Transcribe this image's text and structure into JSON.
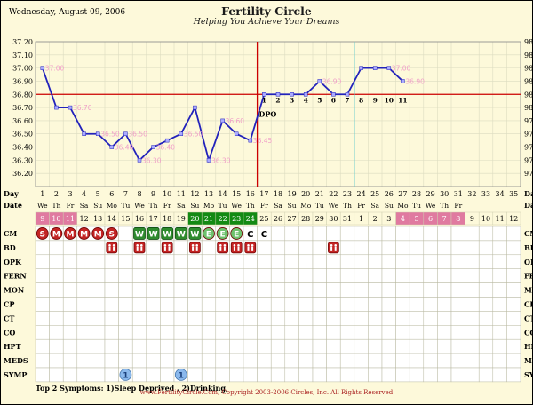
{
  "header": {
    "date": "Wednesday, August 09, 2006",
    "title": "Fertility Circle",
    "subtitle": "Helping You Achieve Your Dreams"
  },
  "footer": {
    "text": "www.FertilityCircle.Com, Copyright 2003-2006 Circles, Inc. All Rights Reserved"
  },
  "symptoms_note": "Top 2 Symptoms: 1)Sleep Deprived , 2)Drinking,",
  "colors": {
    "temp_line": "#2222bb",
    "temp_marker": "#aaaaff",
    "coverline": "#cc0000",
    "ovulation_line": "#cc0000",
    "ovulation_alt_line": "#66cccc",
    "period_cell": "#e07aa0",
    "fertile_cell": "#138a13",
    "stamp_red": "#c42424",
    "stamp_green": "#2e8b2e",
    "symp_badge": "#8ab8ec"
  },
  "chart_data": {
    "type": "line",
    "title": "",
    "ylabel_left": "Temperature (C)",
    "ylabel_right": "Temperature (F)",
    "ylim": [
      36.1,
      37.2
    ],
    "y_ticks_c": [
      "37.20",
      "37.10",
      "37.00",
      "36.90",
      "36.80",
      "36.70",
      "36.60",
      "36.50",
      "36.40",
      "36.30",
      "36.20"
    ],
    "y_ticks_f": [
      "98.96",
      "98.78",
      "98.60",
      "98.42",
      "98.24",
      "98.06",
      "97.88",
      "97.70",
      "97.52",
      "97.34",
      "97.16"
    ],
    "coverline": 36.8,
    "ovulation_day": 16,
    "alt_ovulation_day": 23,
    "days": [
      1,
      2,
      3,
      4,
      5,
      6,
      7,
      8,
      9,
      10,
      11,
      12,
      13,
      14,
      15,
      16,
      17,
      18,
      19,
      20,
      21,
      22,
      23,
      24,
      25,
      26,
      27,
      28,
      29,
      30,
      31,
      32,
      33,
      34,
      35
    ],
    "temps": [
      37.0,
      36.7,
      36.7,
      36.5,
      36.5,
      36.4,
      36.5,
      36.3,
      36.4,
      36.45,
      36.5,
      36.7,
      36.3,
      36.6,
      36.5,
      36.45,
      36.8,
      36.8,
      36.8,
      36.8,
      36.9,
      36.8,
      36.8,
      37.0,
      37.0,
      37.0,
      36.9
    ],
    "temp_labels": [
      "37.00",
      "",
      "36.70",
      "",
      "36.50",
      "36.40",
      "36.50",
      "36.30",
      "36.40",
      "",
      "36.50",
      "",
      "36.30",
      "36.60",
      "",
      "36.45",
      "",
      "",
      "",
      "",
      "36.90",
      "",
      "",
      "",
      "",
      "37.00",
      "36.90"
    ],
    "dpo_label": "DPO",
    "dpo_numbers": [
      "1",
      "2",
      "3",
      "4",
      "5",
      "6",
      "7",
      "8",
      "9",
      "10",
      "11"
    ],
    "dpo_start_day": 17
  },
  "rows": {
    "day_label": "Day",
    "date_label": "Date",
    "weekdays": [
      "We",
      "Th",
      "Fr",
      "Sa",
      "Su",
      "Mo",
      "Tu",
      "We",
      "Th",
      "Fr",
      "Sa",
      "Su",
      "Mo",
      "Tu",
      "We",
      "Th",
      "Fr",
      "Sa",
      "Su",
      "Mo",
      "Tu",
      "We",
      "Th",
      "Fr",
      "Sa",
      "Su",
      "Mo",
      "Tu",
      "We",
      "Th",
      "Fr",
      "Sa",
      "Su",
      "Mo",
      "Tu"
    ],
    "weekdays_shown": 31,
    "dates": [
      "9",
      "10",
      "11",
      "12",
      "13",
      "14",
      "15",
      "16",
      "17",
      "18",
      "19",
      "20",
      "21",
      "22",
      "23",
      "24",
      "25",
      "26",
      "27",
      "28",
      "29",
      "30",
      "31",
      "1",
      "2",
      "3",
      "4",
      "5",
      "6",
      "7",
      "8",
      "9",
      "10",
      "11",
      "12"
    ],
    "period_cells": [
      1,
      2,
      3,
      27,
      28,
      29,
      30,
      31
    ],
    "fertile_cells": [
      12,
      13,
      14,
      15,
      16
    ],
    "labels": [
      "CM",
      "BD",
      "OPK",
      "FERN",
      "MON",
      "CP",
      "CT",
      "CO",
      "HPT",
      "MEDS",
      "SYMP"
    ],
    "cm": [
      {
        "day": 1,
        "letter": "S",
        "color": "red"
      },
      {
        "day": 2,
        "letter": "M",
        "color": "red"
      },
      {
        "day": 3,
        "letter": "M",
        "color": "red"
      },
      {
        "day": 4,
        "letter": "M",
        "color": "red"
      },
      {
        "day": 5,
        "letter": "M",
        "color": "red"
      },
      {
        "day": 6,
        "letter": "S",
        "color": "red"
      },
      {
        "day": 8,
        "letter": "W",
        "color": "green"
      },
      {
        "day": 9,
        "letter": "W",
        "color": "green"
      },
      {
        "day": 10,
        "letter": "W",
        "color": "green"
      },
      {
        "day": 11,
        "letter": "W",
        "color": "green"
      },
      {
        "day": 12,
        "letter": "W",
        "color": "green"
      },
      {
        "day": 13,
        "letter": "E",
        "color": "lightgreen"
      },
      {
        "day": 14,
        "letter": "E",
        "color": "lightgreen"
      },
      {
        "day": 15,
        "letter": "E",
        "color": "lightgreen"
      },
      {
        "day": 16,
        "letter": "C",
        "color": "none"
      },
      {
        "day": 17,
        "letter": "C",
        "color": "none"
      }
    ],
    "bd_days": [
      6,
      8,
      10,
      12,
      14,
      15,
      16,
      22
    ],
    "symp": [
      {
        "day": 7,
        "value": "1"
      },
      {
        "day": 11,
        "value": "1"
      }
    ]
  }
}
